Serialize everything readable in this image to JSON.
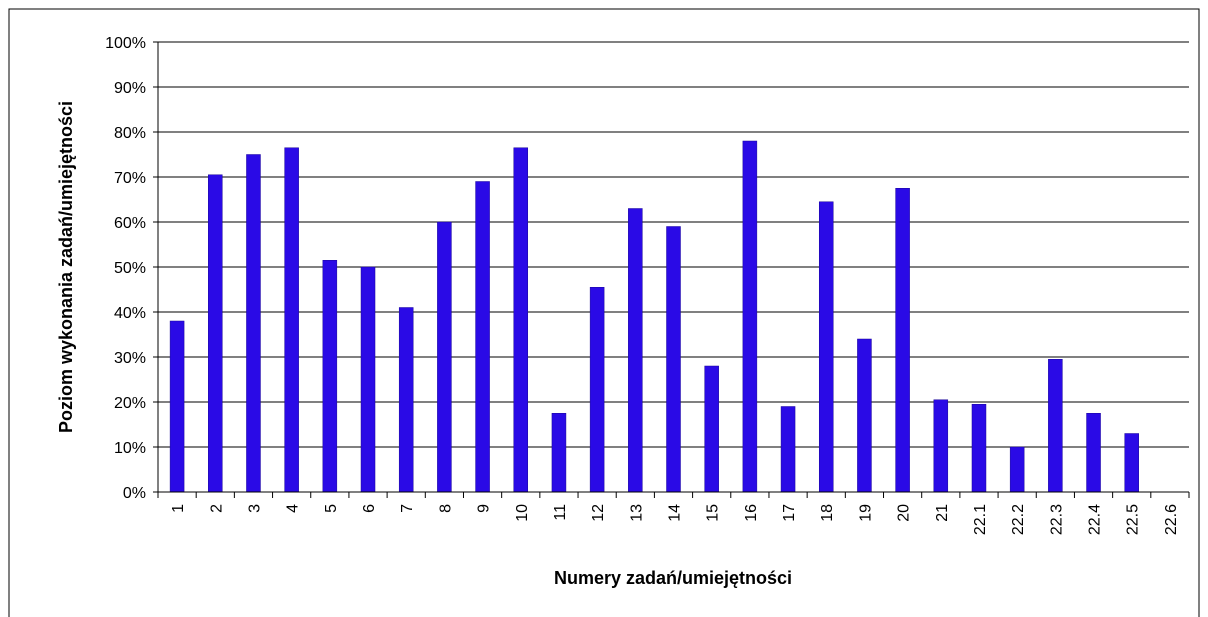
{
  "chart_data": {
    "type": "bar",
    "xlabel": "Numery zadań/umiejętności",
    "ylabel": "Poziom wykonania zadań/umiejętności",
    "categories": [
      "1",
      "2",
      "3",
      "4",
      "5",
      "6",
      "7",
      "8",
      "9",
      "10",
      "11",
      "12",
      "13",
      "14",
      "15",
      "16",
      "17",
      "18",
      "19",
      "20",
      "21",
      "22.1",
      "22.2",
      "22.3",
      "22.4",
      "22.5",
      "22.6"
    ],
    "values": [
      38,
      70.5,
      75,
      76.5,
      51.5,
      50,
      41,
      60,
      69,
      76.5,
      17.5,
      45.5,
      63,
      59,
      28,
      78,
      19,
      64.5,
      34,
      67.5,
      20.5,
      19.5,
      10,
      29.5,
      17.5,
      13,
      0
    ],
    "color": "#2a0ae6",
    "ylim": [
      0,
      100
    ],
    "yticks": [
      {
        "value": 0,
        "label": "0%"
      },
      {
        "value": 10,
        "label": "10%"
      },
      {
        "value": 20,
        "label": "20%"
      },
      {
        "value": 30,
        "label": "30%"
      },
      {
        "value": 40,
        "label": "40%"
      },
      {
        "value": 50,
        "label": "50%"
      },
      {
        "value": 60,
        "label": "60%"
      },
      {
        "value": 70,
        "label": "70%"
      },
      {
        "value": 80,
        "label": "80%"
      },
      {
        "value": 90,
        "label": "90%"
      },
      {
        "value": 100,
        "label": "100%"
      }
    ],
    "grid": true
  }
}
